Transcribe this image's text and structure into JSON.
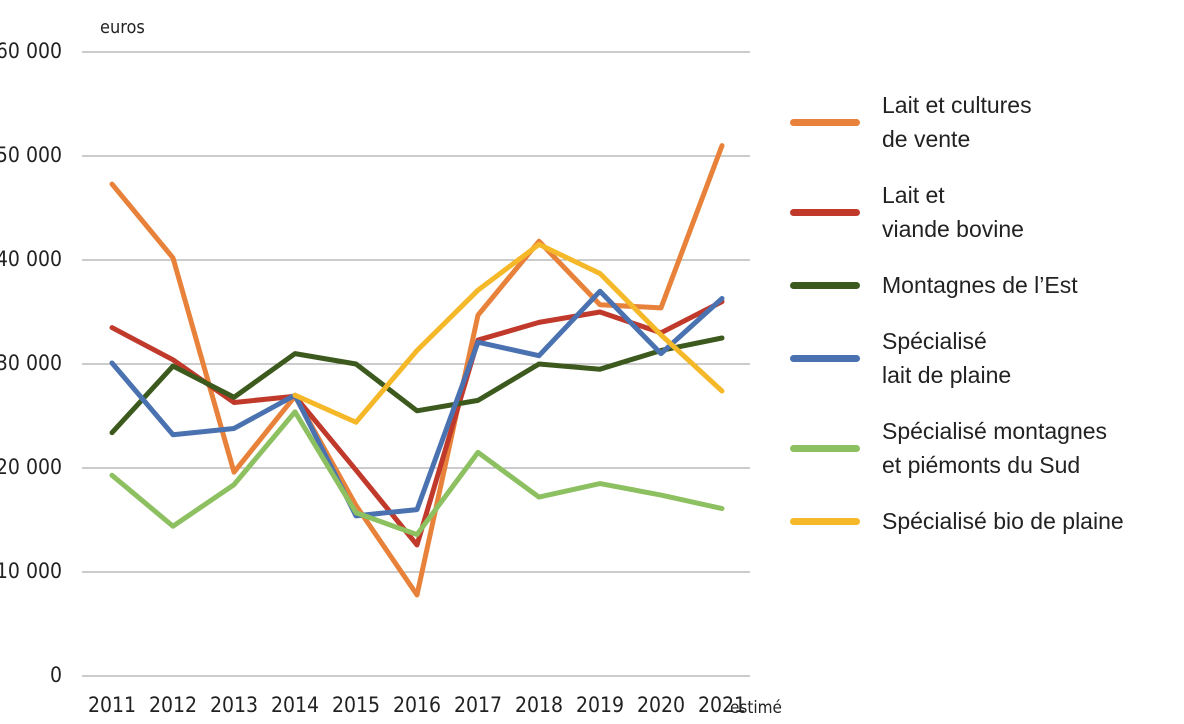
{
  "chart_data": {
    "type": "line",
    "y_label": "euros",
    "x_note": "estimé",
    "categories": [
      "2011",
      "2012",
      "2013",
      "2014",
      "2015",
      "2016",
      "2017",
      "2018",
      "2019",
      "2020",
      "2021"
    ],
    "ylim": [
      0,
      60000
    ],
    "yticks": [
      0,
      {
        "value": 10000,
        "label": "10 000"
      },
      {
        "value": 20000,
        "label": "20 000"
      },
      {
        "value": 30000,
        "label": "30 000"
      },
      {
        "value": 40000,
        "label": "40 000"
      },
      {
        "value": 50000,
        "label": "50 000"
      },
      {
        "value": 60000,
        "label": "60 000"
      }
    ],
    "grid": true,
    "legend": "right",
    "series": [
      {
        "name": "Lait et cultures\nde vente",
        "color": "#e8823a",
        "values": [
          47300,
          40200,
          19600,
          26900,
          16400,
          7800,
          34700,
          41800,
          35700,
          35400,
          51000
        ]
      },
      {
        "name": "Lait et\nviande bovine",
        "color": "#c0392b",
        "values": [
          33500,
          30400,
          26300,
          26900,
          19800,
          12600,
          32300,
          34000,
          35000,
          33000,
          36000
        ]
      },
      {
        "name": "Montagnes de l’Est",
        "color": "#3d5a1e",
        "values": [
          23400,
          29800,
          26800,
          31000,
          30000,
          25500,
          26500,
          30000,
          29500,
          31300,
          32500
        ]
      },
      {
        "name": "Spécialisé\nlait de plaine",
        "color": "#4a72b0",
        "values": [
          30100,
          23200,
          23800,
          27000,
          15400,
          16000,
          32100,
          30800,
          37000,
          31000,
          36300
        ]
      },
      {
        "name": "Spécialisé montagnes\net piémonts du Sud",
        "color": "#8dc060",
        "values": [
          19300,
          14400,
          18400,
          25400,
          15700,
          13600,
          21500,
          17200,
          18500,
          17400,
          16100
        ]
      },
      {
        "name": "Spécialisé bio de plaine",
        "color": "#f5b828",
        "values": [
          null,
          null,
          null,
          27000,
          24400,
          31300,
          37100,
          41500,
          38700,
          32800,
          27400
        ]
      }
    ]
  }
}
